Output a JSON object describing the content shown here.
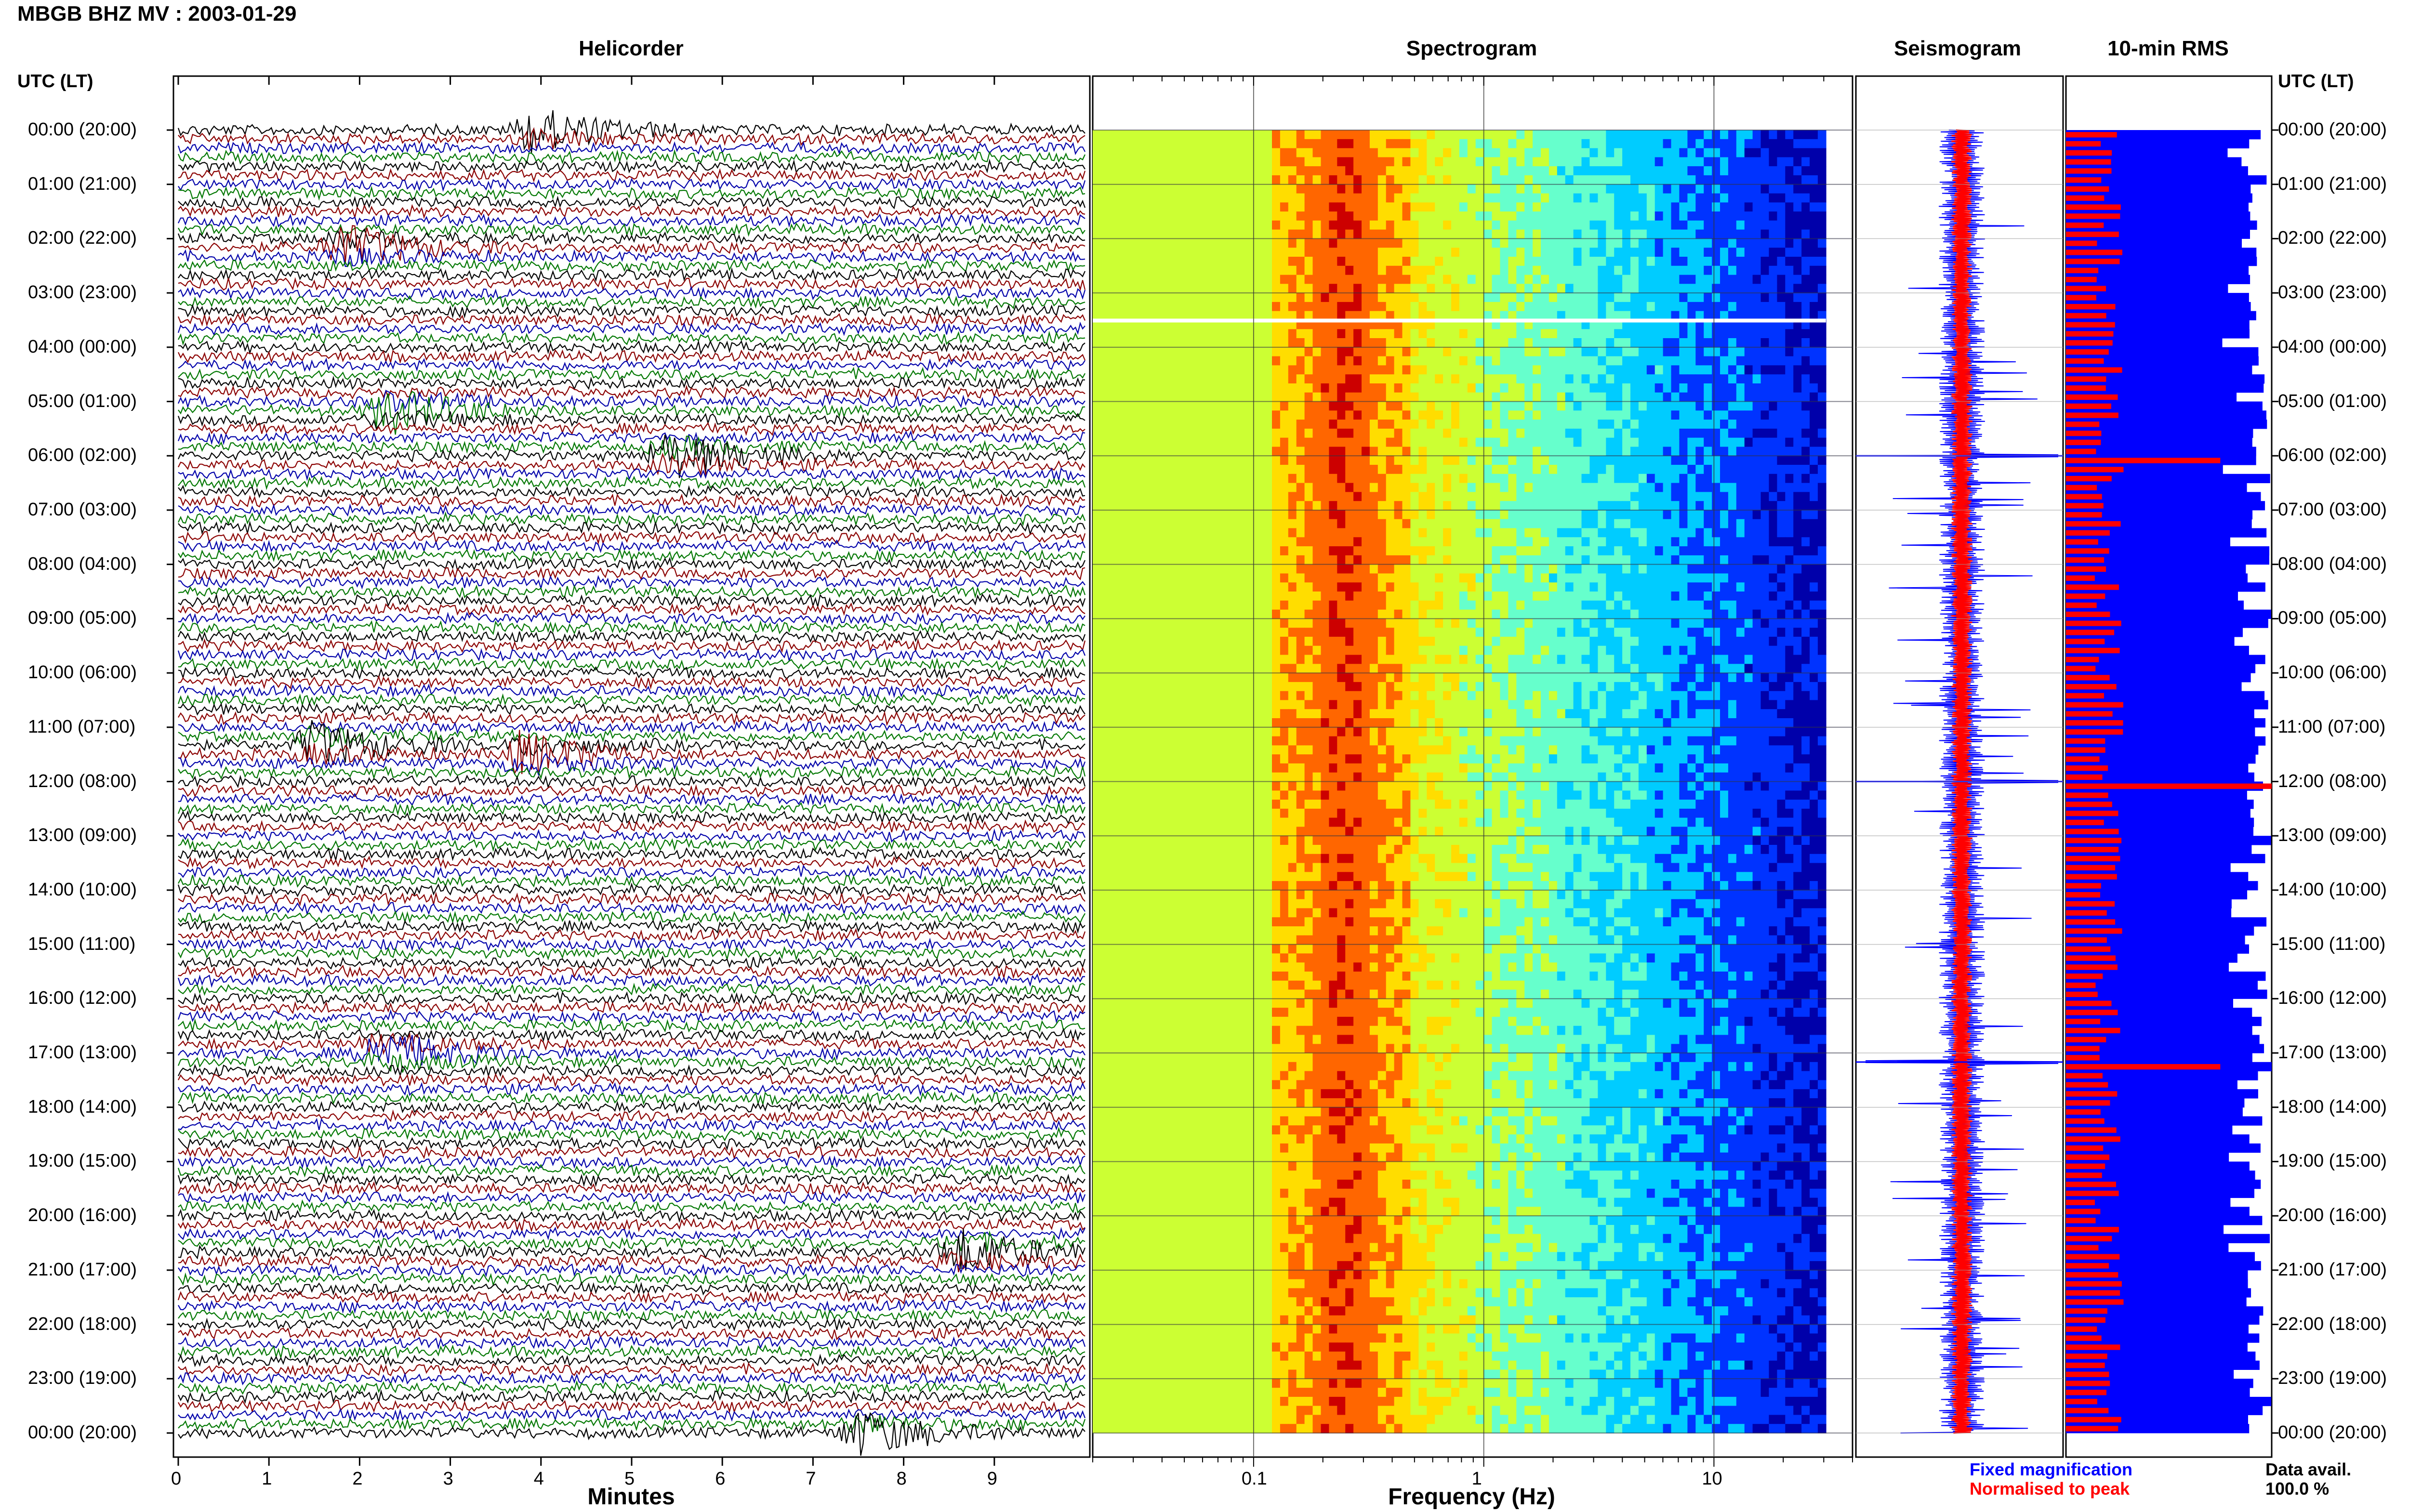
{
  "title": "MBGB BHZ MV : 2003-01-29",
  "panels": {
    "helicorder": "Helicorder",
    "spectrogram": "Spectrogram",
    "seismogram": "Seismogram",
    "rms": "10-min RMS"
  },
  "utc_header": "UTC (LT)",
  "time_labels": [
    "00:00 (20:00)",
    "01:00 (21:00)",
    "02:00 (22:00)",
    "03:00 (23:00)",
    "04:00 (00:00)",
    "05:00 (01:00)",
    "06:00 (02:00)",
    "07:00 (03:00)",
    "08:00 (04:00)",
    "09:00 (05:00)",
    "10:00 (06:00)",
    "11:00 (07:00)",
    "12:00 (08:00)",
    "13:00 (09:00)",
    "14:00 (10:00)",
    "15:00 (11:00)",
    "16:00 (12:00)",
    "17:00 (13:00)",
    "18:00 (14:00)",
    "19:00 (15:00)",
    "20:00 (16:00)",
    "21:00 (17:00)",
    "22:00 (18:00)",
    "23:00 (19:00)",
    "00:00 (20:00)"
  ],
  "helicorder_axis": {
    "xlabel": "Minutes",
    "ticks": [
      "0",
      "1",
      "2",
      "3",
      "4",
      "5",
      "6",
      "7",
      "8",
      "9"
    ],
    "trace_colors": [
      "#000000",
      "#8b0000",
      "#0000aa",
      "#007700"
    ]
  },
  "spectrogram_axis": {
    "xlabel": "Frequency (Hz)",
    "ticks": [
      "0.1",
      "1",
      "10"
    ],
    "scale": "log",
    "xlim": [
      0.02,
      40
    ]
  },
  "legend": {
    "fixed": "Fixed magnification",
    "normalised": "Normalised to peak",
    "fixed_color": "#0000ff",
    "normalised_color": "#ff0000",
    "avail_label": "Data avail.",
    "avail_value": "100.0 %"
  },
  "chart_data": {
    "type": "heatmap",
    "station": "MBGB BHZ MV",
    "date": "2003-01-29",
    "rows_per_hour": 6,
    "hours": 24,
    "spectrogram": {
      "peak_frequency_hz": 0.25,
      "data_gap_after_utc": "03:30",
      "colormap": [
        "#0000aa",
        "#0033ff",
        "#00ccff",
        "#66ffcc",
        "#ccff33",
        "#ffdd00",
        "#ff6600",
        "#cc0000"
      ]
    },
    "rms_10min": {
      "fixed_color": "#0000ff",
      "normalised_color": "#ff0000",
      "spikes_utc": [
        "06:00",
        "12:00",
        "17:10"
      ]
    },
    "helicorder_events": [
      {
        "utc": "00:00",
        "minute": 3.9,
        "color": "#8b0000"
      },
      {
        "utc": "02:10",
        "minute": 1.8,
        "color": "#007700"
      },
      {
        "utc": "05:10",
        "minute": 2.3,
        "color": "#007700"
      },
      {
        "utc": "06:00",
        "minute": 5.4,
        "color": "#8b0000"
      },
      {
        "utc": "11:30",
        "minute": 3.8,
        "color": "#8b0000"
      },
      {
        "utc": "11:20",
        "minute": 1.5,
        "color": "#8b0000"
      },
      {
        "utc": "17:00",
        "minute": 2.2,
        "color": "#000000"
      },
      {
        "utc": "20:40",
        "minute": 8.6,
        "color": "#8b0000"
      },
      {
        "utc": "24:00",
        "minute": 7.5,
        "color": "#007700"
      }
    ]
  }
}
